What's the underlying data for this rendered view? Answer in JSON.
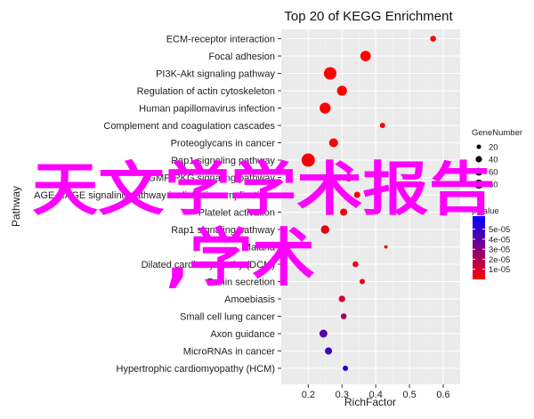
{
  "chart_data": {
    "type": "scatter",
    "title": "Top 20 of KEGG Enrichment",
    "xlabel": "RichFactor",
    "ylabel": "Pathway",
    "xlim": [
      0.12,
      0.65
    ],
    "xticks": [
      0.2,
      0.3,
      0.4,
      0.5,
      0.6
    ],
    "grid": true,
    "legend_position": "right",
    "categories": [
      "ECM-receptor interaction",
      "Focal adhesion",
      "PI3K-Akt signaling pathway",
      "Regulation of actin cytoskeleton",
      "Human papillomavirus infection",
      "Complement and coagulation cascades",
      "Proteoglycans in cancer",
      "Rap1 signaling pathway",
      "cGMP-PKG signaling pathway",
      "AGE-RAGE signaling pathway in diabetic complications",
      "Platelet activation",
      "Rap1 signaling pathway",
      "Malaria",
      "Dilated cardiomyopathy (DCM)",
      "Renin secretion",
      "Amoebiasis",
      "Small cell lung cancer",
      "Axon guidance",
      "MicroRNAs in cancer",
      "Hypertrophic cardiomyopathy (HCM)"
    ],
    "points": [
      {
        "x": 0.57,
        "gene_number": 12,
        "pvalue": 1e-08
      },
      {
        "x": 0.37,
        "gene_number": 38,
        "pvalue": 2e-08
      },
      {
        "x": 0.265,
        "gene_number": 55,
        "pvalue": 4e-08
      },
      {
        "x": 0.3,
        "gene_number": 35,
        "pvalue": 6e-08
      },
      {
        "x": 0.25,
        "gene_number": 42,
        "pvalue": 1e-07
      },
      {
        "x": 0.42,
        "gene_number": 10,
        "pvalue": 1.2e-07
      },
      {
        "x": 0.275,
        "gene_number": 28,
        "pvalue": 8e-07
      },
      {
        "x": 0.2,
        "gene_number": 62,
        "pvalue": 2e-06
      },
      {
        "x": 0.32,
        "gene_number": 22,
        "pvalue": 2e-06
      },
      {
        "x": 0.345,
        "gene_number": 14,
        "pvalue": 3e-06
      },
      {
        "x": 0.305,
        "gene_number": 18,
        "pvalue": 4e-06
      },
      {
        "x": 0.25,
        "gene_number": 25,
        "pvalue": 5e-06
      },
      {
        "x": 0.43,
        "gene_number": 4,
        "pvalue": 4e-06
      },
      {
        "x": 0.34,
        "gene_number": 12,
        "pvalue": 6e-06
      },
      {
        "x": 0.36,
        "gene_number": 10,
        "pvalue": 6e-06
      },
      {
        "x": 0.3,
        "gene_number": 15,
        "pvalue": 1e-05
      },
      {
        "x": 0.305,
        "gene_number": 12,
        "pvalue": 2e-05
      },
      {
        "x": 0.245,
        "gene_number": 22,
        "pvalue": 4.2e-05
      },
      {
        "x": 0.26,
        "gene_number": 18,
        "pvalue": 4.8e-05
      },
      {
        "x": 0.31,
        "gene_number": 10,
        "pvalue": 5.8e-05
      }
    ],
    "size_legend": {
      "title": "GeneNumber",
      "values": [
        20,
        40,
        60,
        80
      ],
      "labels": [
        "20",
        "40",
        "60",
        "80"
      ]
    },
    "color_legend": {
      "title": "p.value",
      "range": [
        0,
        6.3e-05
      ],
      "ticks": [
        5e-05,
        4e-05,
        3e-05,
        2e-05,
        1e-05
      ],
      "labels": [
        "5e-05",
        "4e-05",
        "3e-05",
        "2e-05",
        "1e-05"
      ],
      "low_color": "#ff0000",
      "high_color": "#0000ff"
    }
  },
  "overlay": {
    "line1": "天文学学术报告",
    "line2": ",学术",
    "color": "#ff00ff"
  }
}
